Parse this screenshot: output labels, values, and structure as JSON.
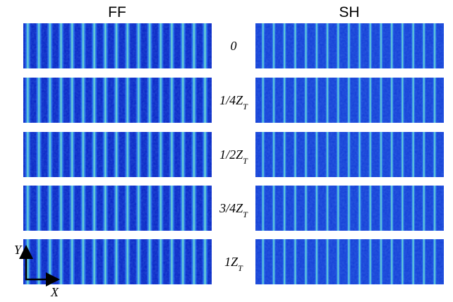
{
  "columns": [
    "FF",
    "SH"
  ],
  "rows": [
    {
      "label": "0"
    },
    {
      "label": "1/4Z",
      "subscript": "T"
    },
    {
      "label": "1/2Z",
      "subscript": "T"
    },
    {
      "label": "3/4Z",
      "subscript": "T"
    },
    {
      "label": "1Z",
      "subscript": "T"
    }
  ],
  "axes": {
    "y": "Y",
    "x": "X"
  }
}
